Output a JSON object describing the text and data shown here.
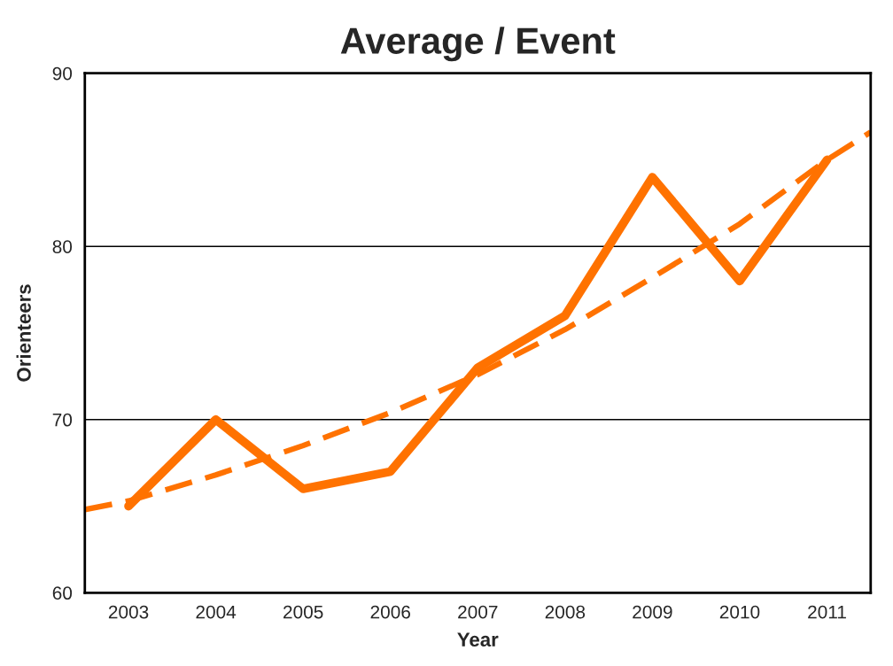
{
  "chart_data": {
    "type": "line",
    "title": "Average / Event",
    "xlabel": "Year",
    "ylabel": "Orienteers",
    "x": [
      2003,
      2004,
      2005,
      2006,
      2007,
      2008,
      2009,
      2010,
      2011
    ],
    "series": [
      {
        "color": "#ff7200",
        "values": [
          65,
          70,
          66,
          67,
          73,
          76,
          84,
          78,
          85
        ],
        "line_style": "solid"
      },
      {
        "type": "line",
        "color": "#ff7200",
        "line_style": "dashed",
        "x": [
          2002.5,
          2003,
          2004,
          2005,
          2006,
          2007,
          2008,
          2009,
          2010,
          2011,
          2011.5
        ],
        "values": [
          64.8,
          65.3,
          66.8,
          68.5,
          70.4,
          72.6,
          75.2,
          78.2,
          81.3,
          85.0,
          86.6
        ]
      }
    ],
    "xlim": [
      2002.5,
      2011.5
    ],
    "xticks": [
      2003,
      2004,
      2005,
      2006,
      2007,
      2008,
      2009,
      2010,
      2011
    ],
    "ylim": [
      60,
      90
    ],
    "yticks": [
      60,
      70,
      80,
      90
    ],
    "grid": "y",
    "legend": false
  }
}
